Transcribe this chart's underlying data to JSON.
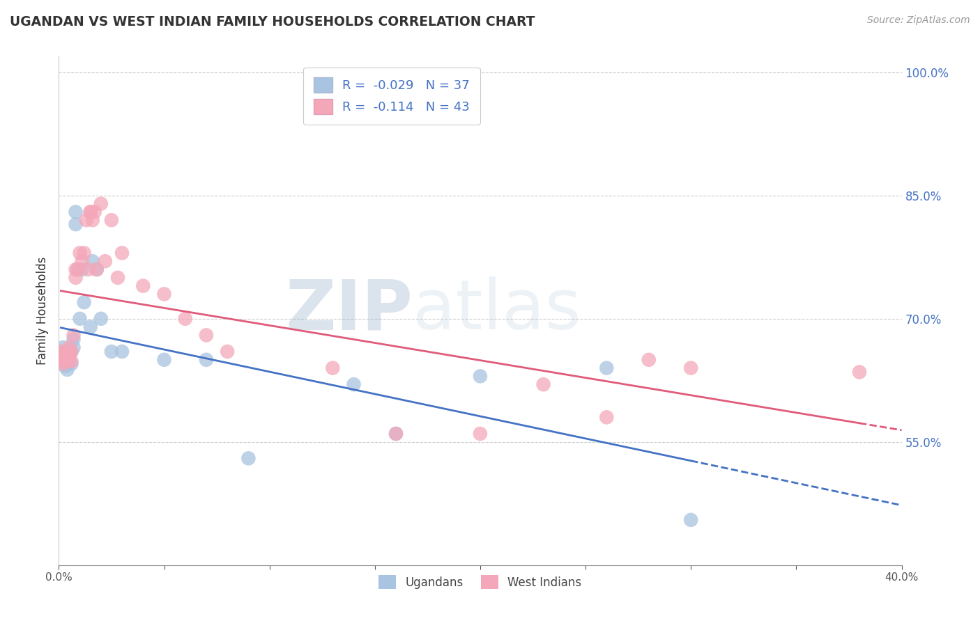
{
  "title": "UGANDAN VS WEST INDIAN FAMILY HOUSEHOLDS CORRELATION CHART",
  "source": "Source: ZipAtlas.com",
  "ylabel": "Family Households",
  "xmin": 0.0,
  "xmax": 0.4,
  "ymin": 0.4,
  "ymax": 1.02,
  "yticks": [
    0.55,
    0.7,
    0.85,
    1.0
  ],
  "ytick_labels": [
    "55.0%",
    "70.0%",
    "85.0%",
    "100.0%"
  ],
  "xticks": [
    0.0,
    0.05,
    0.1,
    0.15,
    0.2,
    0.25,
    0.3,
    0.35,
    0.4
  ],
  "xtick_labels_show": [
    "0.0%",
    "",
    "",
    "",
    "",
    "",
    "",
    "",
    "40.0%"
  ],
  "grid_color": "#cccccc",
  "ugandan_color": "#a8c4e0",
  "west_indian_color": "#f4a7b9",
  "ugandan_line_color": "#4472c4",
  "west_indian_line_color": "#e05a7a",
  "R_ugandan": -0.029,
  "N_ugandan": 37,
  "R_west_indian": -0.114,
  "N_west_indian": 43,
  "ugandan_x": [
    0.001,
    0.001,
    0.002,
    0.002,
    0.003,
    0.003,
    0.003,
    0.004,
    0.004,
    0.004,
    0.005,
    0.005,
    0.005,
    0.006,
    0.006,
    0.007,
    0.007,
    0.008,
    0.008,
    0.009,
    0.01,
    0.011,
    0.012,
    0.015,
    0.016,
    0.018,
    0.02,
    0.025,
    0.03,
    0.05,
    0.07,
    0.09,
    0.14,
    0.16,
    0.2,
    0.26,
    0.3
  ],
  "ugandan_y": [
    0.66,
    0.65,
    0.665,
    0.655,
    0.66,
    0.648,
    0.642,
    0.66,
    0.645,
    0.638,
    0.66,
    0.655,
    0.648,
    0.66,
    0.645,
    0.675,
    0.665,
    0.815,
    0.83,
    0.76,
    0.7,
    0.76,
    0.72,
    0.69,
    0.77,
    0.76,
    0.7,
    0.66,
    0.66,
    0.65,
    0.65,
    0.53,
    0.62,
    0.56,
    0.63,
    0.64,
    0.455
  ],
  "west_indian_x": [
    0.001,
    0.001,
    0.002,
    0.002,
    0.003,
    0.003,
    0.004,
    0.005,
    0.005,
    0.006,
    0.006,
    0.007,
    0.008,
    0.008,
    0.009,
    0.01,
    0.011,
    0.012,
    0.013,
    0.014,
    0.015,
    0.015,
    0.016,
    0.017,
    0.018,
    0.02,
    0.022,
    0.025,
    0.028,
    0.03,
    0.04,
    0.05,
    0.06,
    0.07,
    0.08,
    0.13,
    0.16,
    0.2,
    0.23,
    0.26,
    0.28,
    0.3,
    0.38
  ],
  "west_indian_y": [
    0.65,
    0.66,
    0.645,
    0.655,
    0.65,
    0.66,
    0.648,
    0.665,
    0.655,
    0.66,
    0.648,
    0.68,
    0.76,
    0.75,
    0.76,
    0.78,
    0.77,
    0.78,
    0.82,
    0.76,
    0.83,
    0.83,
    0.82,
    0.83,
    0.76,
    0.84,
    0.77,
    0.82,
    0.75,
    0.78,
    0.74,
    0.73,
    0.7,
    0.68,
    0.66,
    0.64,
    0.56,
    0.56,
    0.62,
    0.58,
    0.65,
    0.64,
    0.635
  ]
}
